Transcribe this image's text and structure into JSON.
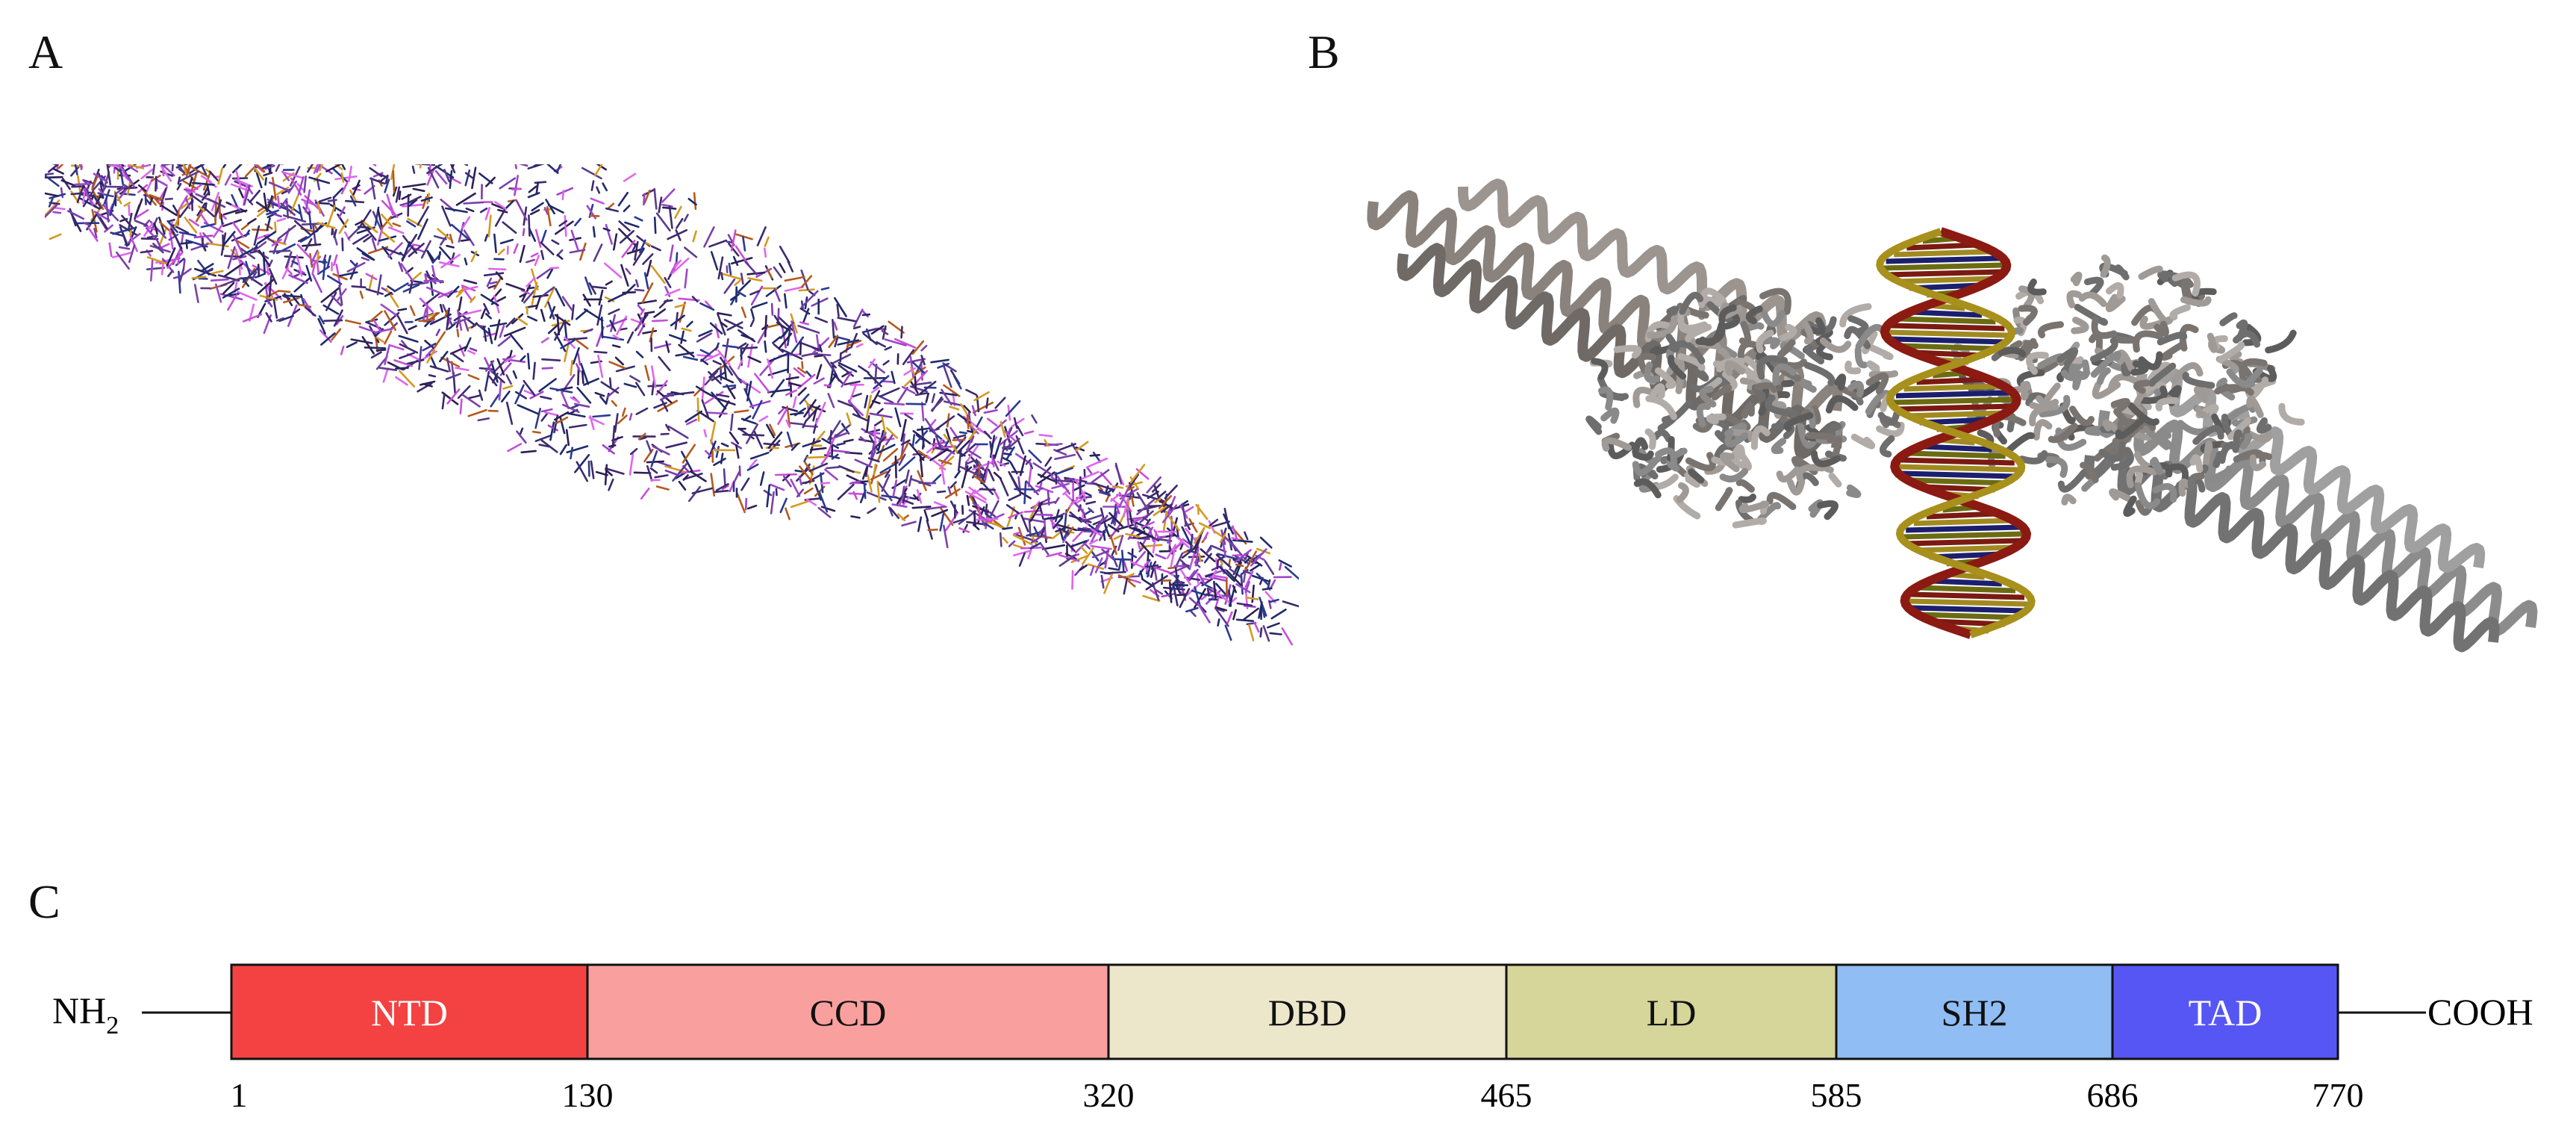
{
  "panels": {
    "a": {
      "label": "A"
    },
    "b": {
      "label": "B"
    },
    "c": {
      "label": "C"
    }
  },
  "domain_map": {
    "n_term_label": "NH",
    "n_term_sub": "2",
    "c_term_label": "COOH",
    "domains": [
      {
        "name": "NTD",
        "start": 1,
        "end": 130,
        "color": "#f44242",
        "text_color": "#ffffff"
      },
      {
        "name": "CCD",
        "start": 130,
        "end": 320,
        "color": "#f9a09e",
        "text_color": "#111111"
      },
      {
        "name": "DBD",
        "start": 320,
        "end": 465,
        "color": "#ece6cb",
        "text_color": "#111111"
      },
      {
        "name": "LD",
        "start": 465,
        "end": 585,
        "color": "#d6d59a",
        "text_color": "#111111"
      },
      {
        "name": "SH2",
        "start": 585,
        "end": 686,
        "color": "#8fbdf4",
        "text_color": "#111111"
      },
      {
        "name": "TAD",
        "start": 686,
        "end": 770,
        "color": "#5656f5",
        "text_color": "#ffffff"
      }
    ],
    "positions": [
      "1",
      "130",
      "320",
      "465",
      "585",
      "686",
      "770"
    ]
  }
}
